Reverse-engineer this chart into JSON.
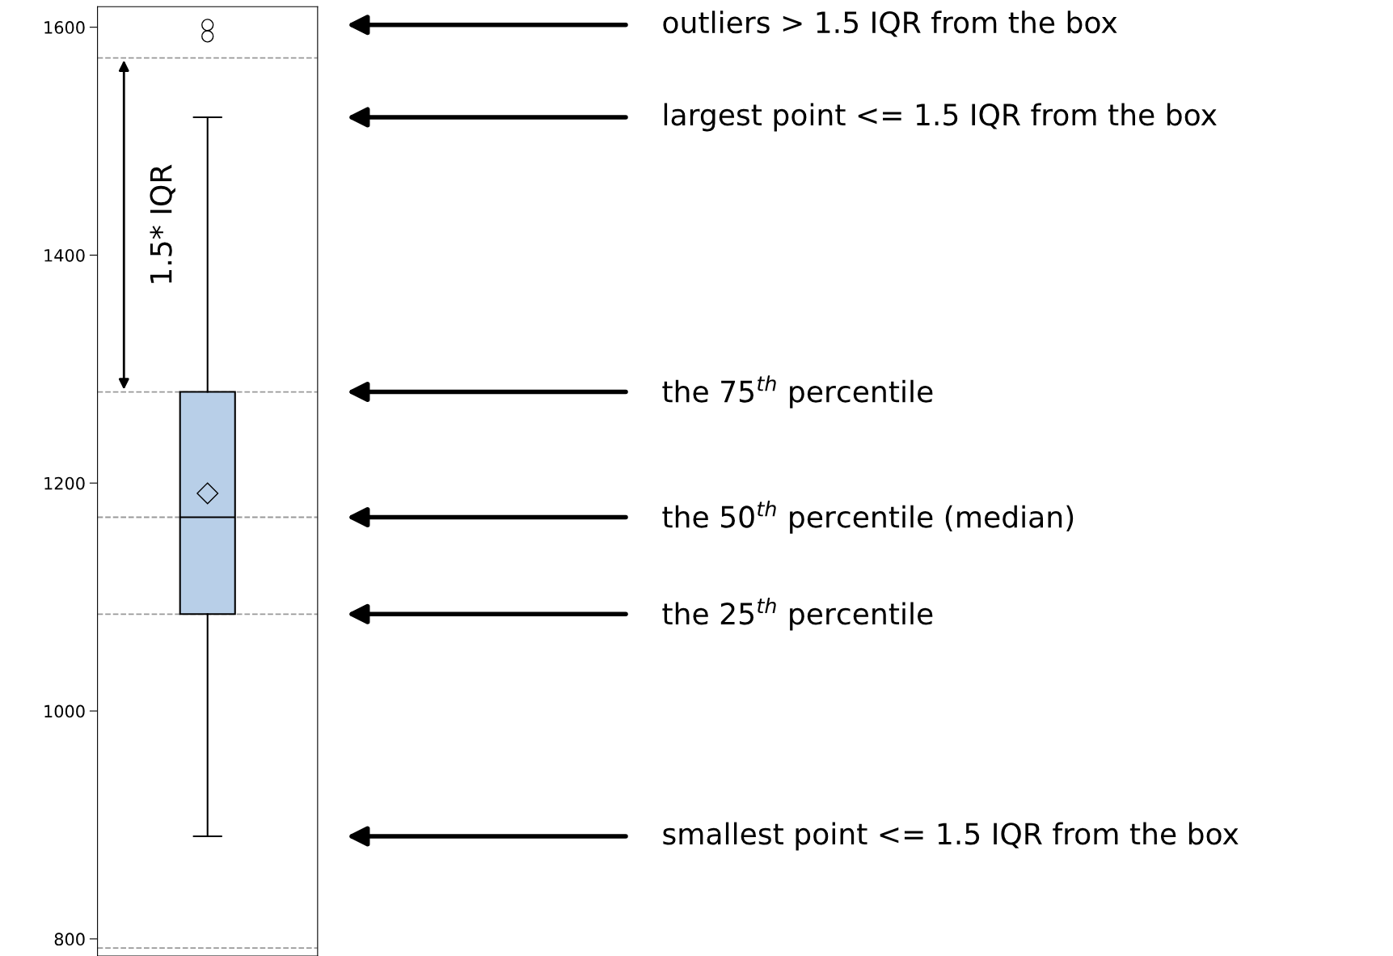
{
  "chart_data": {
    "type": "box",
    "categories": [
      null
    ],
    "boxes": [
      {
        "low": 890,
        "q1": 1085,
        "median": 1170,
        "q3": 1280,
        "high": 1521,
        "mean": 1191,
        "outliers": [
          1592,
          1602
        ]
      }
    ],
    "colors": [
      "#b8cfe8"
    ],
    "ylim": [
      785,
      1618
    ],
    "yticks": [
      800,
      1000,
      1200,
      1400,
      1600
    ],
    "tick_labels": "y",
    "grid": false,
    "ref_lines": [
      {
        "axis": "y",
        "value": 1573,
        "color": "#999999",
        "line_style": "dashed"
      },
      {
        "axis": "y",
        "value": 1280,
        "color": "#999999",
        "line_style": "dashed"
      },
      {
        "axis": "y",
        "value": 1170,
        "color": "#999999",
        "line_style": "dashed"
      },
      {
        "axis": "y",
        "value": 1085,
        "color": "#999999",
        "line_style": "dashed"
      },
      {
        "axis": "y",
        "value": 792,
        "color": "#999999",
        "line_style": "dashed"
      }
    ],
    "annotations": [
      "outliers > 1.5 IQR from the box",
      "largest point <= 1.5 IQR from the box",
      "the 75$^{th}$ percentile",
      "the 50$^{th}$ percentile (median)",
      "the 25$^{th}$ percentile",
      "smallest point <= 1.5 IQR from the box",
      "1.5* IQR"
    ]
  }
}
